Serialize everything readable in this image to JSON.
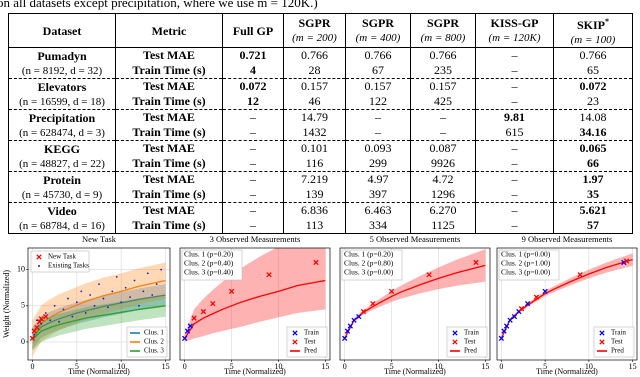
{
  "caption": "on all datasets except precipitation, where we use m = 120K.)",
  "table": {
    "columns": [
      {
        "name": "Dataset"
      },
      {
        "name": "Metric"
      },
      {
        "name": "Full GP"
      },
      {
        "name": "SGPR",
        "sub": "(m = 200)"
      },
      {
        "name": "SGPR",
        "sub": "(m = 400)"
      },
      {
        "name": "SGPR",
        "sub": "(m = 800)"
      },
      {
        "name": "KISS-GP",
        "sub": "(m = 120K)"
      },
      {
        "name": "SKIP",
        "sub": "(m = 100)",
        "mark": "*"
      }
    ],
    "rows": [
      {
        "dataset": "Pumadyn",
        "info": "(n = 8192, d = 32)",
        "metrics": [
          {
            "metric": "Test MAE",
            "cells": [
              "0.721",
              "0.766",
              "0.766",
              "0.766",
              "–",
              "0.766"
            ],
            "bold": [
              0
            ]
          },
          {
            "metric": "Train Time (s)",
            "cells": [
              "4",
              "28",
              "67",
              "235",
              "–",
              "65"
            ],
            "bold": [
              0
            ]
          }
        ]
      },
      {
        "dataset": "Elevators",
        "info": "(n = 16599, d = 18)",
        "metrics": [
          {
            "metric": "Test MAE",
            "cells": [
              "0.072",
              "0.157",
              "0.157",
              "0.157",
              "–",
              "0.072"
            ],
            "bold": [
              0,
              5
            ]
          },
          {
            "metric": "Train Time (s)",
            "cells": [
              "12",
              "46",
              "122",
              "425",
              "–",
              "23"
            ],
            "bold": [
              0
            ]
          }
        ]
      },
      {
        "dataset": "Precipitation",
        "info": "(n = 628474, d = 3)",
        "metrics": [
          {
            "metric": "Test MAE",
            "cells": [
              "–",
              "14.79",
              "–",
              "–",
              "9.81",
              "14.08"
            ],
            "bold": [
              4
            ]
          },
          {
            "metric": "Train Time (s)",
            "cells": [
              "–",
              "1432",
              "–",
              "–",
              "615",
              "34.16"
            ],
            "bold": [
              5
            ]
          }
        ]
      },
      {
        "dataset": "KEGG",
        "info": "(n = 48827, d = 22)",
        "metrics": [
          {
            "metric": "Test MAE",
            "cells": [
              "–",
              "0.101",
              "0.093",
              "0.087",
              "–",
              "0.065"
            ],
            "bold": [
              5
            ]
          },
          {
            "metric": "Train Time (s)",
            "cells": [
              "–",
              "116",
              "299",
              "9926",
              "–",
              "66"
            ],
            "bold": [
              5
            ]
          }
        ]
      },
      {
        "dataset": "Protein",
        "info": "(n = 45730, d = 9)",
        "metrics": [
          {
            "metric": "Test MAE",
            "cells": [
              "–",
              "7.219",
              "4.97",
              "4.72",
              "–",
              "1.97"
            ],
            "bold": [
              5
            ]
          },
          {
            "metric": "Train Time (s)",
            "cells": [
              "–",
              "139",
              "397",
              "1296",
              "–",
              "35"
            ],
            "bold": [
              5
            ]
          }
        ]
      },
      {
        "dataset": "Video",
        "info": "(n = 68784, d = 16)",
        "metrics": [
          {
            "metric": "Test MAE",
            "cells": [
              "–",
              "6.836",
              "6.463",
              "6.270",
              "–",
              "5.621"
            ],
            "bold": [
              5
            ]
          },
          {
            "metric": "Train Time (s)",
            "cells": [
              "–",
              "113",
              "334",
              "1125",
              "–",
              "57"
            ],
            "bold": [
              5
            ]
          }
        ]
      }
    ]
  },
  "chart_data": [
    {
      "type": "line",
      "title": "New Task",
      "xlabel": "Time (Normalized)",
      "ylabel": "Weight (Normalized)",
      "xlim": [
        -0.5,
        15.5
      ],
      "ylim": [
        -2.5,
        13
      ],
      "xticks": [
        0,
        5,
        10,
        15
      ],
      "yticks": [
        0,
        5,
        10
      ],
      "grid": true,
      "legend": "lower right",
      "points_legend": "upper left",
      "x": [
        0,
        1,
        2,
        3,
        4,
        5,
        6,
        8,
        10,
        12,
        15
      ],
      "series": [
        {
          "name": "Clus. 1",
          "color": "#1f77b4",
          "values": [
            0.5,
            2.1,
            2.7,
            3.2,
            3.6,
            4.0,
            4.3,
            4.9,
            5.4,
            5.9,
            6.5
          ],
          "lower": [
            -1.0,
            0.6,
            1.2,
            1.7,
            2.1,
            2.5,
            2.8,
            3.4,
            3.9,
            4.4,
            5.0
          ],
          "upper": [
            2.0,
            3.6,
            4.2,
            4.7,
            5.1,
            5.5,
            5.8,
            6.4,
            6.9,
            7.4,
            8.0
          ]
        },
        {
          "name": "Clus. 2",
          "color": "#ff7f0e",
          "values": [
            0.5,
            2.6,
            3.4,
            4.1,
            4.6,
            5.1,
            5.6,
            6.4,
            7.0,
            7.7,
            8.5
          ],
          "lower": [
            -2.0,
            0.1,
            0.9,
            1.6,
            2.1,
            2.6,
            3.1,
            3.9,
            4.5,
            5.2,
            6.0
          ],
          "upper": [
            3.0,
            5.1,
            5.9,
            6.6,
            7.1,
            7.6,
            8.1,
            8.9,
            9.5,
            10.2,
            11.0
          ]
        },
        {
          "name": "Clus. 3",
          "color": "#2ca02c",
          "values": [
            0.3,
            1.5,
            2.0,
            2.4,
            2.7,
            3.0,
            3.3,
            3.7,
            4.1,
            4.5,
            5.0
          ],
          "lower": [
            -1.2,
            0.0,
            0.5,
            0.9,
            1.2,
            1.5,
            1.8,
            2.2,
            2.6,
            3.0,
            3.5
          ],
          "upper": [
            1.8,
            3.0,
            3.5,
            3.9,
            4.2,
            4.5,
            4.8,
            5.2,
            5.6,
            6.0,
            6.5
          ]
        }
      ],
      "points": [
        {
          "name": "New Task",
          "color": "#ff0000",
          "marker": "x",
          "x": [
            0,
            0.2,
            0.5,
            0.8,
            1,
            1.5
          ],
          "values": [
            0.5,
            1.5,
            2,
            2.8,
            3.2,
            3.5
          ]
        },
        {
          "name": "Existing Tasks",
          "color": "#1a1acc",
          "marker": "dot",
          "x": [
            0.2,
            0.5,
            1,
            1.5,
            2,
            2.5,
            3,
            3.5,
            4,
            4.5,
            5,
            5.5,
            6,
            6.5,
            7,
            7.5,
            8,
            8.5,
            9,
            9.5,
            10,
            10.5,
            11,
            11.5,
            12,
            12.5,
            13,
            13.5,
            14,
            14.5
          ],
          "values": [
            1,
            3,
            2.5,
            4,
            3,
            5,
            2.8,
            4.5,
            6,
            3.5,
            5.5,
            7,
            4,
            6.5,
            5,
            8,
            6,
            4.8,
            7,
            9,
            5.5,
            7.5,
            6.2,
            8.5,
            5,
            7,
            9.5,
            6.5,
            8,
            10
          ]
        }
      ]
    },
    {
      "type": "line",
      "title": "3 Observed Measurements",
      "xlabel": "Time (Normalized)",
      "xlim": [
        -0.5,
        15.5
      ],
      "ylim": [
        -2.5,
        13
      ],
      "xticks": [
        0,
        5,
        10,
        15
      ],
      "grid": true,
      "legend": "lower right",
      "annotations": [
        "Clus. 1 (p=0.20)",
        "Clus. 2 (p=0.40)",
        "Clus. 3 (p=0.40)"
      ],
      "x": [
        0,
        1,
        2,
        3,
        4,
        5,
        6,
        8,
        10,
        12,
        15
      ],
      "points": [
        {
          "name": "Train",
          "color": "#0000ff",
          "marker": "x",
          "x": [
            0,
            0.3,
            0.6
          ],
          "values": [
            0.5,
            1.5,
            2.2
          ]
        },
        {
          "name": "Test",
          "color": "#ff0000",
          "marker": "x",
          "x": [
            1,
            2,
            3,
            5,
            9,
            14
          ],
          "values": [
            3.3,
            4.2,
            5.3,
            7,
            9.3,
            11
          ]
        }
      ],
      "series": [
        {
          "name": "Pred",
          "color": "#ff0000",
          "values": [
            0.5,
            2.5,
            3.3,
            3.9,
            4.5,
            5.0,
            5.5,
            6.3,
            7.0,
            7.8,
            8.5
          ],
          "lower": [
            0.0,
            0.5,
            0.8,
            1.2,
            1.5,
            1.8,
            2.1,
            2.8,
            3.4,
            4.0,
            4.5
          ],
          "upper": [
            1.0,
            4.5,
            6.0,
            7.2,
            8.3,
            9.3,
            10.2,
            11.8,
            13.2,
            14.5,
            16.0
          ]
        }
      ]
    },
    {
      "type": "line",
      "title": "5 Observed Measurements",
      "xlabel": "Time (Normalized)",
      "xlim": [
        -0.5,
        15.5
      ],
      "ylim": [
        -2.5,
        13
      ],
      "xticks": [
        0,
        5,
        10,
        15
      ],
      "grid": true,
      "legend": "lower right",
      "annotations": [
        "Clus. 1 (p=0.20)",
        "Clus. 2 (p=0.80)",
        "Clus. 3 (p=0.00)"
      ],
      "x": [
        0,
        1,
        2,
        3,
        4,
        5,
        6,
        8,
        10,
        12,
        15
      ],
      "points": [
        {
          "name": "Train",
          "color": "#0000ff",
          "marker": "x",
          "x": [
            0,
            0.3,
            0.6,
            1,
            1.5
          ],
          "values": [
            0.5,
            1.5,
            2.2,
            3,
            3.5
          ]
        },
        {
          "name": "Test",
          "color": "#ff0000",
          "marker": "x",
          "x": [
            2,
            3,
            5,
            9,
            14
          ],
          "values": [
            4.2,
            5.3,
            7,
            9.3,
            11
          ]
        }
      ],
      "series": [
        {
          "name": "Pred",
          "color": "#ff0000",
          "values": [
            0.5,
            3.0,
            4.1,
            4.9,
            5.6,
            6.3,
            6.9,
            7.9,
            8.8,
            9.6,
            10.6
          ],
          "lower": [
            0.4,
            2.75,
            3.8,
            4.45,
            5.0,
            5.55,
            6.0,
            6.7,
            7.3,
            7.8,
            8.35
          ],
          "upper": [
            0.6,
            3.25,
            4.4,
            5.35,
            6.2,
            7.05,
            7.8,
            9.1,
            10.3,
            11.4,
            12.85
          ]
        }
      ]
    },
    {
      "type": "line",
      "title": "9 Observed Measurements",
      "xlabel": "Time (Normalized)",
      "xlim": [
        -0.5,
        15.5
      ],
      "ylim": [
        -2.5,
        13
      ],
      "xticks": [
        0,
        5,
        10,
        15
      ],
      "grid": true,
      "legend": "lower right",
      "annotations": [
        "Clus. 1 (p=0.00)",
        "Clus. 2 (p=1.00)",
        "Clus. 3 (p=0.00)"
      ],
      "x": [
        0,
        1,
        2,
        3,
        4,
        5,
        6,
        8,
        10,
        12,
        15
      ],
      "points": [
        {
          "name": "Train",
          "color": "#0000ff",
          "marker": "x",
          "x": [
            0,
            0.3,
            0.6,
            1,
            1.5,
            2,
            3,
            5,
            14
          ],
          "values": [
            0.5,
            1.5,
            2.2,
            3,
            3.5,
            4.2,
            5.3,
            7,
            11
          ]
        },
        {
          "name": "Test",
          "color": "#ff0000",
          "marker": "x",
          "x": [
            2.3,
            4,
            9,
            14.3
          ],
          "values": [
            4.6,
            6.2,
            9.3,
            11.2
          ]
        }
      ],
      "series": [
        {
          "name": "Pred",
          "color": "#ff0000",
          "values": [
            0.5,
            3.1,
            4.2,
            5.1,
            5.9,
            6.7,
            7.3,
            8.4,
            9.4,
            10.3,
            11.4
          ],
          "lower": [
            0.4,
            2.95,
            4.0,
            4.85,
            5.6,
            6.35,
            6.9,
            7.9,
            8.8,
            9.6,
            10.55
          ],
          "upper": [
            0.6,
            3.25,
            4.4,
            5.35,
            6.2,
            7.05,
            7.7,
            8.9,
            10.0,
            11.0,
            12.25
          ]
        }
      ]
    }
  ]
}
